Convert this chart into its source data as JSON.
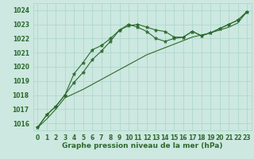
{
  "xlabel": "Graphe pression niveau de la mer (hPa)",
  "ylim": [
    1015.5,
    1024.5
  ],
  "xlim": [
    -0.5,
    23.5
  ],
  "yticks": [
    1016,
    1017,
    1018,
    1019,
    1020,
    1021,
    1022,
    1023,
    1024
  ],
  "xticks": [
    0,
    1,
    2,
    3,
    4,
    5,
    6,
    7,
    8,
    9,
    10,
    11,
    12,
    13,
    14,
    15,
    16,
    17,
    18,
    19,
    20,
    21,
    22,
    23
  ],
  "background_color": "#cce8e0",
  "grid_color": "#aad4c8",
  "line_color": "#2d6a2d",
  "line1_y": [
    1015.7,
    1016.6,
    1017.2,
    1018.0,
    1018.9,
    1019.6,
    1020.5,
    1021.1,
    1021.8,
    1022.6,
    1022.9,
    1023.0,
    1022.8,
    1022.6,
    1022.5,
    1022.1,
    1022.1,
    1022.5,
    1022.2,
    1022.4,
    1022.7,
    1023.0,
    1023.3,
    1023.9
  ],
  "line2_y": [
    1015.7,
    1016.6,
    1017.2,
    1018.0,
    1019.5,
    1020.3,
    1021.2,
    1021.5,
    1022.0,
    1022.6,
    1023.0,
    1022.8,
    1022.5,
    1022.0,
    1021.8,
    1022.0,
    1022.1,
    1022.5,
    1022.2,
    1022.4,
    1022.7,
    1023.0,
    1023.3,
    1023.9
  ],
  "line3_y": [
    1015.7,
    1016.3,
    1017.0,
    1017.8,
    1018.1,
    1018.4,
    1018.75,
    1019.1,
    1019.45,
    1019.8,
    1020.15,
    1020.5,
    1020.85,
    1021.1,
    1021.35,
    1021.6,
    1021.85,
    1022.1,
    1022.25,
    1022.4,
    1022.6,
    1022.8,
    1023.1,
    1023.9
  ],
  "marker": "*",
  "marker_size": 3.5,
  "tick_fontsize": 5.5,
  "label_fontsize": 6.5,
  "linewidth": 0.8
}
